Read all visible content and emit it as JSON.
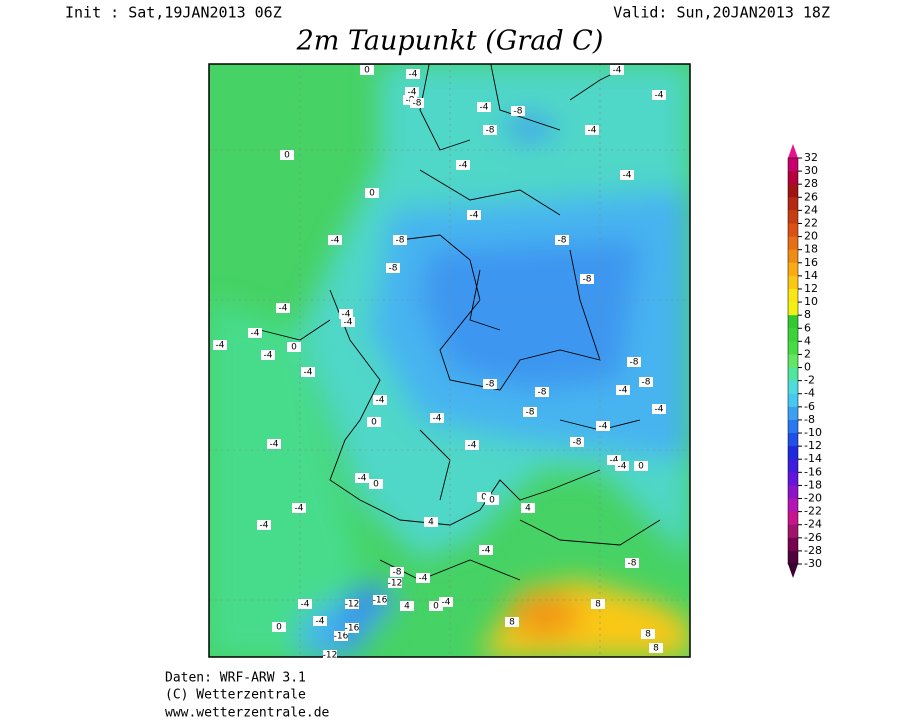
{
  "header": {
    "init": "Init : Sat,19JAN2013 06Z",
    "valid": "Valid: Sun,20JAN2013 18Z",
    "title": "2m Taupunkt (Grad C)"
  },
  "footer": {
    "lines": [
      "Daten: WRF-ARW 3.1",
      "(C) Wetterzentrale",
      "www.wetterzentrale.de"
    ]
  },
  "colorbar": {
    "ticks": [
      32,
      30,
      28,
      26,
      24,
      22,
      20,
      18,
      16,
      14,
      12,
      10,
      8,
      6,
      4,
      2,
      0,
      -2,
      -4,
      -6,
      -8,
      -10,
      -12,
      -14,
      -16,
      -18,
      -20,
      -22,
      -24,
      -26,
      -28,
      -30
    ],
    "colors": [
      "#c8006e",
      "#b4003c",
      "#a01414",
      "#b42814",
      "#c83c14",
      "#dc5014",
      "#e66e14",
      "#f08c14",
      "#faaa14",
      "#fac814",
      "#fae614",
      "#f0f014",
      "#32c832",
      "#3cd23c",
      "#46dc46",
      "#64e664",
      "#50e6a0",
      "#50dcdc",
      "#46c8f0",
      "#3ca0f0",
      "#2878f0",
      "#1e50e6",
      "#1e28dc",
      "#3c1edc",
      "#6414dc",
      "#8c14c8",
      "#b414b4",
      "#c8148c",
      "#a0146e",
      "#780050",
      "#50003c"
    ],
    "top_color": "#e6148c",
    "bottom_color": "#3c0032"
  },
  "map": {
    "labels": [
      0,
      -4,
      -4,
      -8,
      -8,
      -4,
      -8,
      -8,
      -4,
      -4,
      -4,
      0,
      -4,
      -4,
      0,
      -4,
      -8,
      -4,
      -8,
      -8,
      -8,
      -4,
      -4,
      -4,
      -4,
      -4,
      -4,
      0,
      -4,
      -8,
      -8,
      -4,
      -8,
      -8,
      -4,
      -4,
      -8,
      -4,
      0,
      -4,
      -4,
      -4,
      -8,
      -4,
      -4,
      0,
      -4,
      0,
      0,
      0,
      -4,
      4,
      -4,
      4,
      -4,
      -8,
      -12,
      -4,
      -8,
      -12,
      -16,
      -4,
      0,
      -4,
      4,
      0,
      -4,
      -16,
      -16,
      8,
      8,
      8,
      8,
      -12
    ]
  }
}
